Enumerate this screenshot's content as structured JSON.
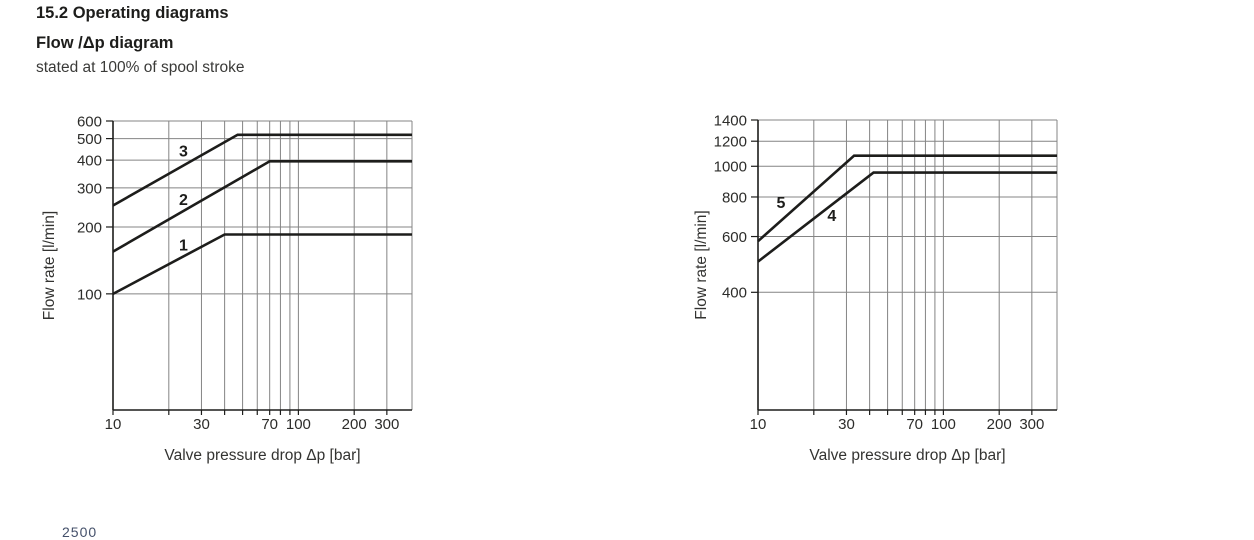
{
  "header": {
    "section_title": "15.2 Operating diagrams",
    "diagram_title": "Flow /Δp diagram",
    "note": "stated at 100% of spool stroke"
  },
  "footer": {
    "partial_text": "2500"
  },
  "colors": {
    "text": "#1d1d1b",
    "grid": "#848484",
    "axis": "#1d1d1b",
    "curve": "#1d1d1b"
  },
  "chart_data": [
    {
      "type": "line",
      "scale": "log-log",
      "title": "",
      "xlabel": "Valve pressure drop Δp [bar]",
      "ylabel": "Flow rate [l/min]",
      "xlim": [
        10,
        410
      ],
      "ylim": [
        30,
        600
      ],
      "x_ticks": [
        10,
        30,
        70,
        100,
        200,
        300
      ],
      "x_gridlines": [
        20,
        30,
        40,
        50,
        60,
        70,
        80,
        90,
        100,
        200,
        300
      ],
      "y_ticks": [
        100,
        200,
        300,
        400,
        500,
        600
      ],
      "y_gridlines": [
        100,
        200,
        300,
        400,
        500,
        600
      ],
      "grid": true,
      "legend": "curve numbers on plot",
      "series": [
        {
          "name": "1",
          "points": [
            [
              10,
              100
            ],
            [
              40,
              185
            ],
            [
              410,
              185
            ]
          ],
          "label_at": [
            24,
            166
          ]
        },
        {
          "name": "2",
          "points": [
            [
              10,
              155
            ],
            [
              70,
              395
            ],
            [
              410,
              395
            ]
          ],
          "label_at": [
            24,
            267
          ]
        },
        {
          "name": "3",
          "points": [
            [
              10,
              250
            ],
            [
              47,
              520
            ],
            [
              410,
              520
            ]
          ],
          "label_at": [
            24,
            440
          ]
        }
      ]
    },
    {
      "type": "line",
      "scale": "log-log",
      "title": "",
      "xlabel": "Valve pressure drop Δp [bar]",
      "ylabel": "Flow rate [l/min]",
      "xlim": [
        10,
        410
      ],
      "ylim": [
        170,
        1400
      ],
      "x_ticks": [
        10,
        30,
        70,
        100,
        200,
        300
      ],
      "x_gridlines": [
        20,
        30,
        40,
        50,
        60,
        70,
        80,
        90,
        100,
        200,
        300
      ],
      "y_ticks": [
        400,
        600,
        800,
        1000,
        1200,
        1400
      ],
      "y_gridlines": [
        400,
        600,
        800,
        1000,
        1200,
        1400
      ],
      "grid": true,
      "legend": "curve numbers on plot",
      "series": [
        {
          "name": "4",
          "points": [
            [
              10,
              500
            ],
            [
              42,
              955
            ],
            [
              410,
              955
            ]
          ],
          "label_at": [
            25,
            700
          ]
        },
        {
          "name": "5",
          "points": [
            [
              10,
              580
            ],
            [
              33,
              1080
            ],
            [
              410,
              1080
            ]
          ],
          "label_at": [
            13.3,
            770
          ]
        }
      ]
    }
  ]
}
